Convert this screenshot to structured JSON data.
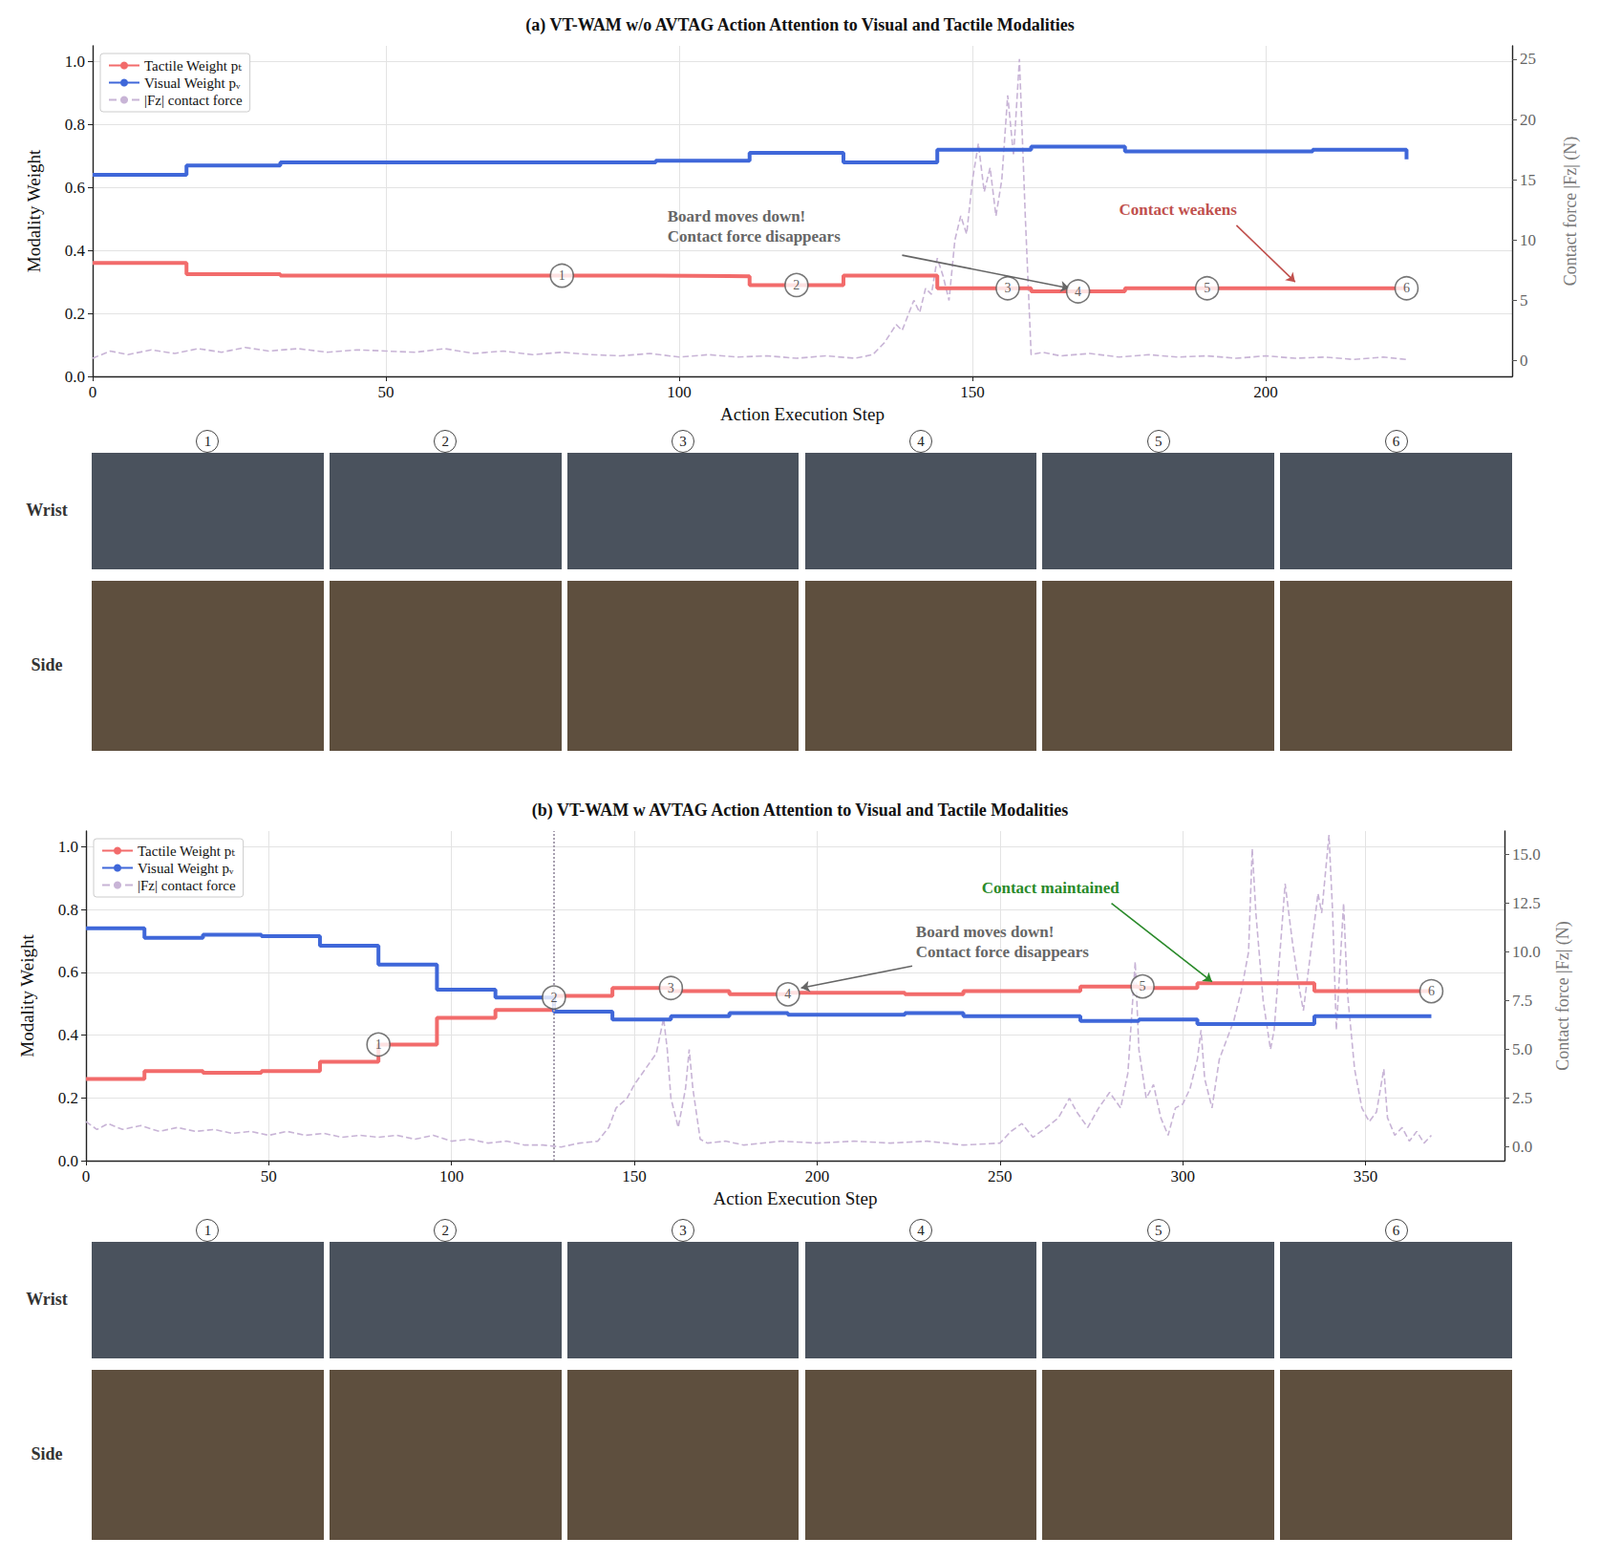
{
  "chart_data": [
    {
      "type": "line",
      "title": "(a) VT-WAM w/o AVTAG Action Attention to Visual and Tactile Modalities",
      "x_label": "Action Execution Step",
      "y_label": "Modality Weight",
      "y2_label": "Contact force |Fz| (N)",
      "xlim": [
        0,
        242
      ],
      "xticks": [
        0,
        50,
        100,
        150,
        200
      ],
      "ylim": [
        0,
        1.05
      ],
      "yticks": [
        {
          "value": 0,
          "label": "0.0"
        },
        0.2,
        0.4,
        0.6,
        0.8,
        {
          "value": 1,
          "label": "1.0"
        }
      ],
      "y2lim": [
        -1.3,
        26.1
      ],
      "y2ticks": [
        0,
        5,
        10,
        15,
        20,
        25
      ],
      "grid": true,
      "legend": "upper left",
      "series": [
        {
          "name": "Tactile Weight pₜ",
          "type": "step",
          "color": "#f26b6b",
          "line_style": "solid",
          "x": [
            0,
            16,
            32,
            48,
            64,
            80,
            96,
            112,
            128,
            144,
            160,
            176,
            192,
            208,
            224
          ],
          "values": [
            0.36,
            0.325,
            0.32,
            0.32,
            0.32,
            0.32,
            0.318,
            0.29,
            0.32,
            0.28,
            0.27,
            0.28,
            0.28,
            0.28,
            0.28
          ]
        },
        {
          "name": "Visual Weight pᵥ",
          "type": "step",
          "color": "#3f67d9",
          "line_style": "solid",
          "x": [
            0,
            16,
            32,
            48,
            64,
            80,
            96,
            112,
            128,
            144,
            160,
            176,
            192,
            208,
            224
          ],
          "values": [
            0.64,
            0.67,
            0.68,
            0.68,
            0.68,
            0.68,
            0.685,
            0.71,
            0.68,
            0.72,
            0.73,
            0.715,
            0.715,
            0.72,
            0.69
          ]
        },
        {
          "name": "|Fz| contact force",
          "type": "line",
          "color": "#c8b4d6",
          "line_style": "dashed",
          "axis": "y2",
          "x": [
            0,
            3,
            6,
            10,
            14,
            18,
            22,
            26,
            30,
            35,
            40,
            45,
            50,
            55,
            60,
            65,
            70,
            75,
            80,
            85,
            90,
            95,
            100,
            105,
            110,
            115,
            120,
            125,
            130,
            133,
            135,
            137,
            138,
            140,
            141,
            142,
            143,
            144,
            145,
            146,
            147,
            148,
            149,
            150,
            151,
            152,
            153,
            154,
            155,
            156,
            157,
            158,
            159,
            160,
            162,
            165,
            170,
            175,
            180,
            185,
            190,
            195,
            200,
            205,
            210,
            215,
            220,
            224
          ],
          "values": [
            0.2,
            0.8,
            0.5,
            0.9,
            0.6,
            1.0,
            0.7,
            1.1,
            0.8,
            1.0,
            0.7,
            0.9,
            0.8,
            0.7,
            1.0,
            0.6,
            0.8,
            0.5,
            0.7,
            0.5,
            0.4,
            0.6,
            0.3,
            0.5,
            0.3,
            0.4,
            0.2,
            0.4,
            0.2,
            0.5,
            1.5,
            3.0,
            2.5,
            5.0,
            4.0,
            6.0,
            5.5,
            8.5,
            7.0,
            5.0,
            10.0,
            12.0,
            10.5,
            15.0,
            18.0,
            14.0,
            16.0,
            12.0,
            15.0,
            22.0,
            17.0,
            25.0,
            12.0,
            0.5,
            0.7,
            0.4,
            0.6,
            0.3,
            0.5,
            0.3,
            0.4,
            0.2,
            0.4,
            0.2,
            0.3,
            0.1,
            0.3,
            0.1
          ]
        }
      ],
      "markers": {
        "labels": [
          "1",
          "2",
          "3",
          "4",
          "5",
          "6"
        ],
        "x": [
          80,
          120,
          156,
          168,
          190,
          224
        ],
        "y": [
          0.32,
          0.29,
          0.28,
          0.27,
          0.28,
          0.28
        ]
      },
      "annotations": [
        {
          "text": [
            "Board moves down!",
            "Contact force disappears"
          ],
          "color": "#666666",
          "x": 98,
          "y": 0.54,
          "arrow": [
            [
              138,
              0.385
            ],
            [
              166.5,
              0.28
            ]
          ]
        },
        {
          "text": [
            "Contact weakens"
          ],
          "color": "#c0504d",
          "x": 175,
          "y": 0.56,
          "arrow": [
            [
              195,
              0.48
            ],
            [
              205,
              0.3
            ]
          ]
        }
      ],
      "vlines": []
    },
    {
      "type": "line",
      "title": "(b) VT-WAM w AVTAG Action Attention to Visual and Tactile Modalities",
      "x_label": "Action Execution Step",
      "y_label": "Modality Weight",
      "y2_label": "Contact force |Fz| (N)",
      "xlim": [
        0,
        388
      ],
      "xticks": [
        0,
        50,
        100,
        150,
        200,
        250,
        300,
        350
      ],
      "ylim": [
        0,
        1.05
      ],
      "yticks": [
        {
          "value": 0,
          "label": "0.0"
        },
        0.2,
        0.4,
        0.6,
        0.8,
        {
          "value": 1,
          "label": "1.0"
        }
      ],
      "y2lim": [
        -0.7,
        16.2
      ],
      "y2ticks": [
        {
          "value": 0,
          "label": "0.0"
        },
        2.5,
        {
          "value": 5,
          "label": "5.0"
        },
        7.5,
        {
          "value": 10,
          "label": "10.0"
        },
        12.5,
        {
          "value": 15,
          "label": "15.0"
        }
      ],
      "grid": true,
      "legend": "upper left",
      "series": [
        {
          "name": "Tactile Weight pₜ",
          "type": "step",
          "color": "#f26b6b",
          "line_style": "solid",
          "x": [
            0,
            16,
            32,
            48,
            64,
            80,
            96,
            112,
            128,
            144,
            160,
            176,
            192,
            208,
            224,
            240,
            256,
            272,
            288,
            304,
            320,
            336,
            352,
            368
          ],
          "values": [
            0.26,
            0.285,
            0.28,
            0.285,
            0.315,
            0.37,
            0.455,
            0.48,
            0.525,
            0.55,
            0.54,
            0.53,
            0.535,
            0.535,
            0.53,
            0.54,
            0.54,
            0.555,
            0.55,
            0.565,
            0.565,
            0.54,
            0.54,
            0.54
          ]
        },
        {
          "name": "Visual Weight pᵥ",
          "type": "step",
          "color": "#3f67d9",
          "line_style": "solid",
          "x": [
            0,
            16,
            32,
            48,
            64,
            80,
            96,
            112,
            128,
            144,
            160,
            176,
            192,
            208,
            224,
            240,
            256,
            272,
            288,
            304,
            320,
            336,
            352,
            368
          ],
          "values": [
            0.74,
            0.71,
            0.72,
            0.715,
            0.685,
            0.625,
            0.545,
            0.52,
            0.475,
            0.45,
            0.46,
            0.47,
            0.465,
            0.465,
            0.47,
            0.46,
            0.46,
            0.445,
            0.45,
            0.435,
            0.435,
            0.46,
            0.46,
            0.46
          ]
        },
        {
          "name": "|Fz| contact force",
          "type": "line",
          "color": "#c8b4d6",
          "line_style": "dashed",
          "axis": "y2",
          "x": [
            0,
            3,
            6,
            10,
            15,
            20,
            25,
            30,
            35,
            40,
            45,
            50,
            55,
            60,
            65,
            70,
            75,
            80,
            85,
            90,
            95,
            100,
            105,
            110,
            115,
            120,
            125,
            130,
            135,
            140,
            143,
            145,
            148,
            150,
            153,
            156,
            158,
            159,
            160,
            162,
            164,
            165,
            166,
            168,
            170,
            175,
            180,
            190,
            200,
            210,
            220,
            230,
            240,
            250,
            253,
            256,
            259,
            262,
            266,
            269,
            271,
            274,
            277,
            280,
            283,
            285,
            287,
            288,
            290,
            292,
            294,
            296,
            298,
            300,
            302,
            304,
            305,
            306,
            308,
            310,
            312,
            314,
            316,
            318,
            319,
            320,
            322,
            324,
            325,
            327,
            328,
            330,
            332,
            333,
            335,
            337,
            338,
            340,
            341,
            342,
            344,
            345,
            347,
            349,
            351,
            353,
            355,
            356,
            358,
            360,
            362,
            364,
            366,
            368
          ],
          "values": [
            1.3,
            0.9,
            1.2,
            0.9,
            1.1,
            0.8,
            1.0,
            0.8,
            0.9,
            0.7,
            0.8,
            0.6,
            0.8,
            0.6,
            0.7,
            0.5,
            0.6,
            0.5,
            0.6,
            0.4,
            0.6,
            0.3,
            0.4,
            0.2,
            0.3,
            0.1,
            0.1,
            0.0,
            0.2,
            0.3,
            1.0,
            2.0,
            2.5,
            3.2,
            4.0,
            4.8,
            6.6,
            5.0,
            2.5,
            1.0,
            3.0,
            5.0,
            3.0,
            0.4,
            0.2,
            0.3,
            0.1,
            0.3,
            0.2,
            0.3,
            0.2,
            0.3,
            0.1,
            0.2,
            0.8,
            1.2,
            0.5,
            0.9,
            1.5,
            2.5,
            1.8,
            1.0,
            2.0,
            2.8,
            2.0,
            3.8,
            9.5,
            5.0,
            2.5,
            3.2,
            1.5,
            0.6,
            2.0,
            2.2,
            3.0,
            4.5,
            6.0,
            3.5,
            2.0,
            4.5,
            5.5,
            6.5,
            8.0,
            10.0,
            15.3,
            12.0,
            7.5,
            5.0,
            6.0,
            11.0,
            13.5,
            10.5,
            8.0,
            7.0,
            10.0,
            13.0,
            12.0,
            16.0,
            12.0,
            6.0,
            12.5,
            8.0,
            4.0,
            2.0,
            1.3,
            1.8,
            4.0,
            1.5,
            0.6,
            1.0,
            0.3,
            0.8,
            0.2,
            0.6
          ]
        }
      ],
      "markers": {
        "labels": [
          "1",
          "2",
          "3",
          "4",
          "5",
          "6"
        ],
        "x": [
          80,
          128,
          160,
          192,
          289,
          368
        ],
        "y": [
          0.37,
          0.52,
          0.55,
          0.53,
          0.555,
          0.54
        ]
      },
      "annotations": [
        {
          "text": [
            "Board moves down!",
            "Contact force disappears"
          ],
          "color": "#666666",
          "x": 227,
          "y": 0.76,
          "arrow": [
            [
              226,
              0.62
            ],
            [
              195.6,
              0.55
            ]
          ]
        },
        {
          "text": [
            "Contact maintained"
          ],
          "color": "#2a8a2a",
          "x": 245,
          "y": 0.9,
          "arrow": [
            [
              280.5,
              0.82
            ],
            [
              308,
              0.57
            ]
          ]
        }
      ],
      "vlines": [
        128
      ]
    }
  ],
  "photo_strips": [
    {
      "row_labels": [
        "Wrist",
        "Side"
      ],
      "frame_labels": [
        "1",
        "2",
        "3",
        "4",
        "5",
        "6"
      ]
    },
    {
      "row_labels": [
        "Wrist",
        "Side"
      ],
      "frame_labels": [
        "1",
        "2",
        "3",
        "4",
        "5",
        "6"
      ]
    }
  ]
}
